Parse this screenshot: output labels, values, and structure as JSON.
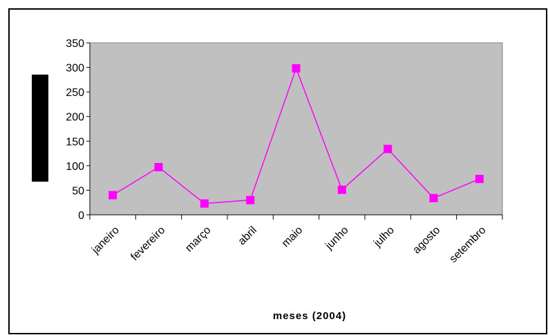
{
  "chart_data": {
    "type": "line",
    "x_label": "meses (2004)",
    "categories": [
      "janeiro",
      "fevereiro",
      "março",
      "abril",
      "maio",
      "junho",
      "julho",
      "agosto",
      "setembro"
    ],
    "values": [
      40,
      97,
      23,
      30,
      298,
      51,
      134,
      34,
      73
    ],
    "color": "#ff00ff",
    "plot_background": "#c0c0c0",
    "ylim": [
      0,
      350
    ],
    "yticks": [
      0,
      50,
      100,
      150,
      200,
      250,
      300,
      350
    ]
  }
}
